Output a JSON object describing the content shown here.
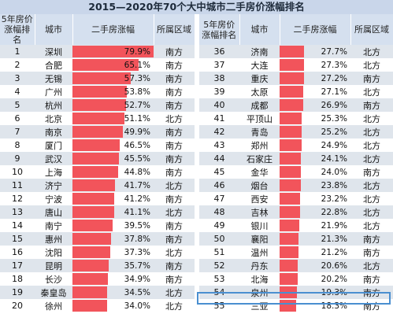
{
  "title": "2015—2020年70个大中城市二手房价涨幅排名",
  "headers": {
    "rank_line1": "5年房价",
    "rank_line2": "涨幅排名",
    "city": "城市",
    "change": "二手房涨幅",
    "region": "所属区域"
  },
  "left_rows": [
    {
      "rank": "1",
      "city": "深圳",
      "change": "79.9%",
      "value": 79.9,
      "region": "南方"
    },
    {
      "rank": "2",
      "city": "合肥",
      "change": "65.1%",
      "value": 65.1,
      "region": "南方"
    },
    {
      "rank": "3",
      "city": "无锡",
      "change": "57.3%",
      "value": 57.3,
      "region": "南方"
    },
    {
      "rank": "4",
      "city": "广州",
      "change": "53.8%",
      "value": 53.8,
      "region": "南方"
    },
    {
      "rank": "5",
      "city": "杭州",
      "change": "52.7%",
      "value": 52.7,
      "region": "南方"
    },
    {
      "rank": "6",
      "city": "北京",
      "change": "51.1%",
      "value": 51.1,
      "region": "北方"
    },
    {
      "rank": "7",
      "city": "南京",
      "change": "49.9%",
      "value": 49.9,
      "region": "南方"
    },
    {
      "rank": "8",
      "city": "厦门",
      "change": "46.5%",
      "value": 46.5,
      "region": "南方"
    },
    {
      "rank": "9",
      "city": "武汉",
      "change": "45.5%",
      "value": 45.5,
      "region": "南方"
    },
    {
      "rank": "10",
      "city": "上海",
      "change": "44.8%",
      "value": 44.8,
      "region": "南方"
    },
    {
      "rank": "11",
      "city": "济宁",
      "change": "41.7%",
      "value": 41.7,
      "region": "北方"
    },
    {
      "rank": "12",
      "city": "宁波",
      "change": "41.2%",
      "value": 41.2,
      "region": "南方"
    },
    {
      "rank": "13",
      "city": "唐山",
      "change": "41.1%",
      "value": 41.1,
      "region": "北方"
    },
    {
      "rank": "14",
      "city": "南宁",
      "change": "39.5%",
      "value": 39.5,
      "region": "南方"
    },
    {
      "rank": "15",
      "city": "惠州",
      "change": "37.8%",
      "value": 37.8,
      "region": "南方"
    },
    {
      "rank": "16",
      "city": "沈阳",
      "change": "37.3%",
      "value": 37.3,
      "region": "北方"
    },
    {
      "rank": "17",
      "city": "昆明",
      "change": "35.7%",
      "value": 35.7,
      "region": "南方"
    },
    {
      "rank": "18",
      "city": "长沙",
      "change": "34.9%",
      "value": 34.9,
      "region": "南方"
    },
    {
      "rank": "19",
      "city": "秦皇岛",
      "change": "34.5%",
      "value": 34.5,
      "region": "北方"
    },
    {
      "rank": "20",
      "city": "徐州",
      "change": "34.0%",
      "value": 34.0,
      "region": "北方"
    }
  ],
  "right_rows": [
    {
      "rank": "36",
      "city": "济南",
      "change": "27.7%",
      "value": 27.7,
      "region": "北方"
    },
    {
      "rank": "37",
      "city": "大连",
      "change": "27.3%",
      "value": 27.3,
      "region": "北方"
    },
    {
      "rank": "38",
      "city": "重庆",
      "change": "27.2%",
      "value": 27.2,
      "region": "南方"
    },
    {
      "rank": "39",
      "city": "太原",
      "change": "27.1%",
      "value": 27.1,
      "region": "北方"
    },
    {
      "rank": "40",
      "city": "成都",
      "change": "26.9%",
      "value": 26.9,
      "region": "南方"
    },
    {
      "rank": "41",
      "city": "平顶山",
      "change": "25.3%",
      "value": 25.3,
      "region": "北方"
    },
    {
      "rank": "42",
      "city": "青岛",
      "change": "25.2%",
      "value": 25.2,
      "region": "北方"
    },
    {
      "rank": "43",
      "city": "郑州",
      "change": "24.9%",
      "value": 24.9,
      "region": "北方"
    },
    {
      "rank": "44",
      "city": "石家庄",
      "change": "24.1%",
      "value": 24.1,
      "region": "北方"
    },
    {
      "rank": "45",
      "city": "金华",
      "change": "24.0%",
      "value": 24.0,
      "region": "南方"
    },
    {
      "rank": "46",
      "city": "烟台",
      "change": "23.8%",
      "value": 23.8,
      "region": "北方"
    },
    {
      "rank": "47",
      "city": "西安",
      "change": "23.2%",
      "value": 23.2,
      "region": "北方"
    },
    {
      "rank": "48",
      "city": "吉林",
      "change": "22.8%",
      "value": 22.8,
      "region": "北方"
    },
    {
      "rank": "49",
      "city": "银川",
      "change": "21.9%",
      "value": 21.9,
      "region": "北方"
    },
    {
      "rank": "50",
      "city": "襄阳",
      "change": "21.3%",
      "value": 21.3,
      "region": "南方"
    },
    {
      "rank": "51",
      "city": "温州",
      "change": "21.2%",
      "value": 21.2,
      "region": "南方"
    },
    {
      "rank": "52",
      "city": "丹东",
      "change": "20.6%",
      "value": 20.6,
      "region": "北方"
    },
    {
      "rank": "53",
      "city": "北海",
      "change": "20.2%",
      "value": 20.2,
      "region": "南方"
    },
    {
      "rank": "54",
      "city": "泉州",
      "change": "19.3%",
      "value": 19.3,
      "region": "南方",
      "highlighted": true
    },
    {
      "rank": "55",
      "city": "三亚",
      "change": "18.3%",
      "value": 18.3,
      "region": "南方"
    }
  ],
  "colors": {
    "bar": "#f2545b",
    "header_bg": "#d5e0ef",
    "title_bg": "#c9d6ea",
    "stripe": "#dfe5ec",
    "highlight_border": "#4a8fd0"
  },
  "bar_scale_max": 80
}
